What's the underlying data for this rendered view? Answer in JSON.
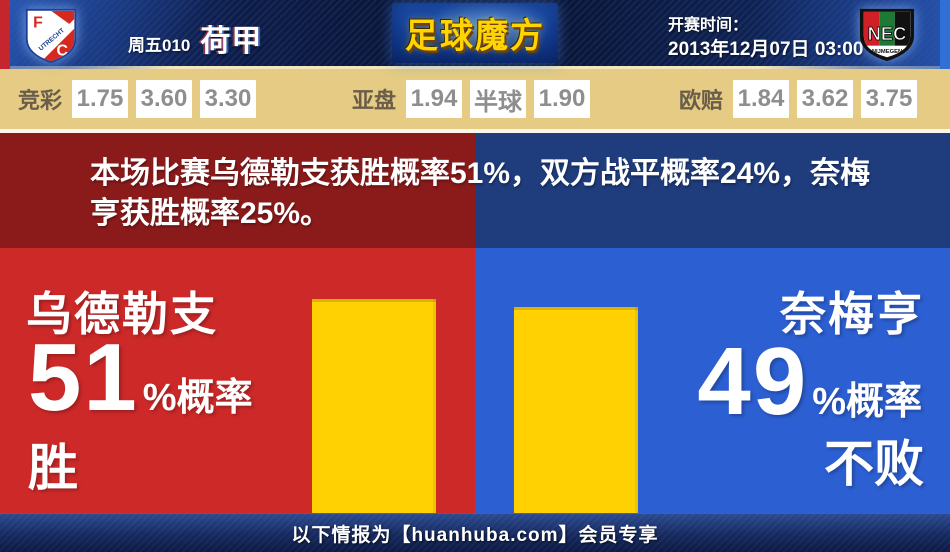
{
  "header": {
    "match_code": "周五010",
    "league": "荷甲",
    "brand": "足球魔方",
    "kickoff_label": "开赛时间：",
    "kickoff_time": "2013年12月07日 03:00",
    "home_badge": {
      "letter_top": "F",
      "letter_bottom": "C",
      "name": "UTRECHT"
    },
    "away_badge": {
      "abbr": "NEC",
      "name": "NIJMEGEN"
    }
  },
  "odds_bar": {
    "jingcai_label": "竞彩",
    "jingcai": [
      "1.75",
      "3.60",
      "3.30"
    ],
    "yapan_label": "亚盘",
    "yapan": [
      "1.94",
      "半球",
      "1.90"
    ],
    "oupei_label": "欧赔",
    "oupei": [
      "1.84",
      "3.62",
      "3.75"
    ]
  },
  "summary_text": "本场比赛乌德勒支获胜概率51%，双方战平概率24%，奈梅亨获胜概率25%。",
  "home_panel": {
    "team": "乌德勒支",
    "percent": "51",
    "percent_unit": "%概率",
    "result": "胜",
    "percent_value": 51
  },
  "away_panel": {
    "team": "奈梅亨",
    "percent": "49",
    "percent_unit": "%概率",
    "result": "不败",
    "percent_value": 49
  },
  "footer_text": "以下情报为【huanhuba.com】会员专享",
  "colors": {
    "header_navy": "#0c1c4a",
    "odds_tan": "#e5cb83",
    "summary_red": "#8b1b1b",
    "summary_blue": "#1f3c7d",
    "panel_red": "#cd2929",
    "panel_blue": "#2c5fd2",
    "bar_yellow": "#ffd103",
    "brand_yellow": "#ffd400",
    "left_edge_red": "#c5262d",
    "right_edge_blue": "#2f6fd6"
  },
  "chart_data": {
    "type": "bar",
    "categories": [
      "乌德勒支 胜",
      "奈梅亨 不败"
    ],
    "values": [
      51,
      49
    ],
    "unit": "%",
    "text_probabilities": {
      "home_win": 51,
      "draw": 24,
      "away_win": 25
    }
  }
}
